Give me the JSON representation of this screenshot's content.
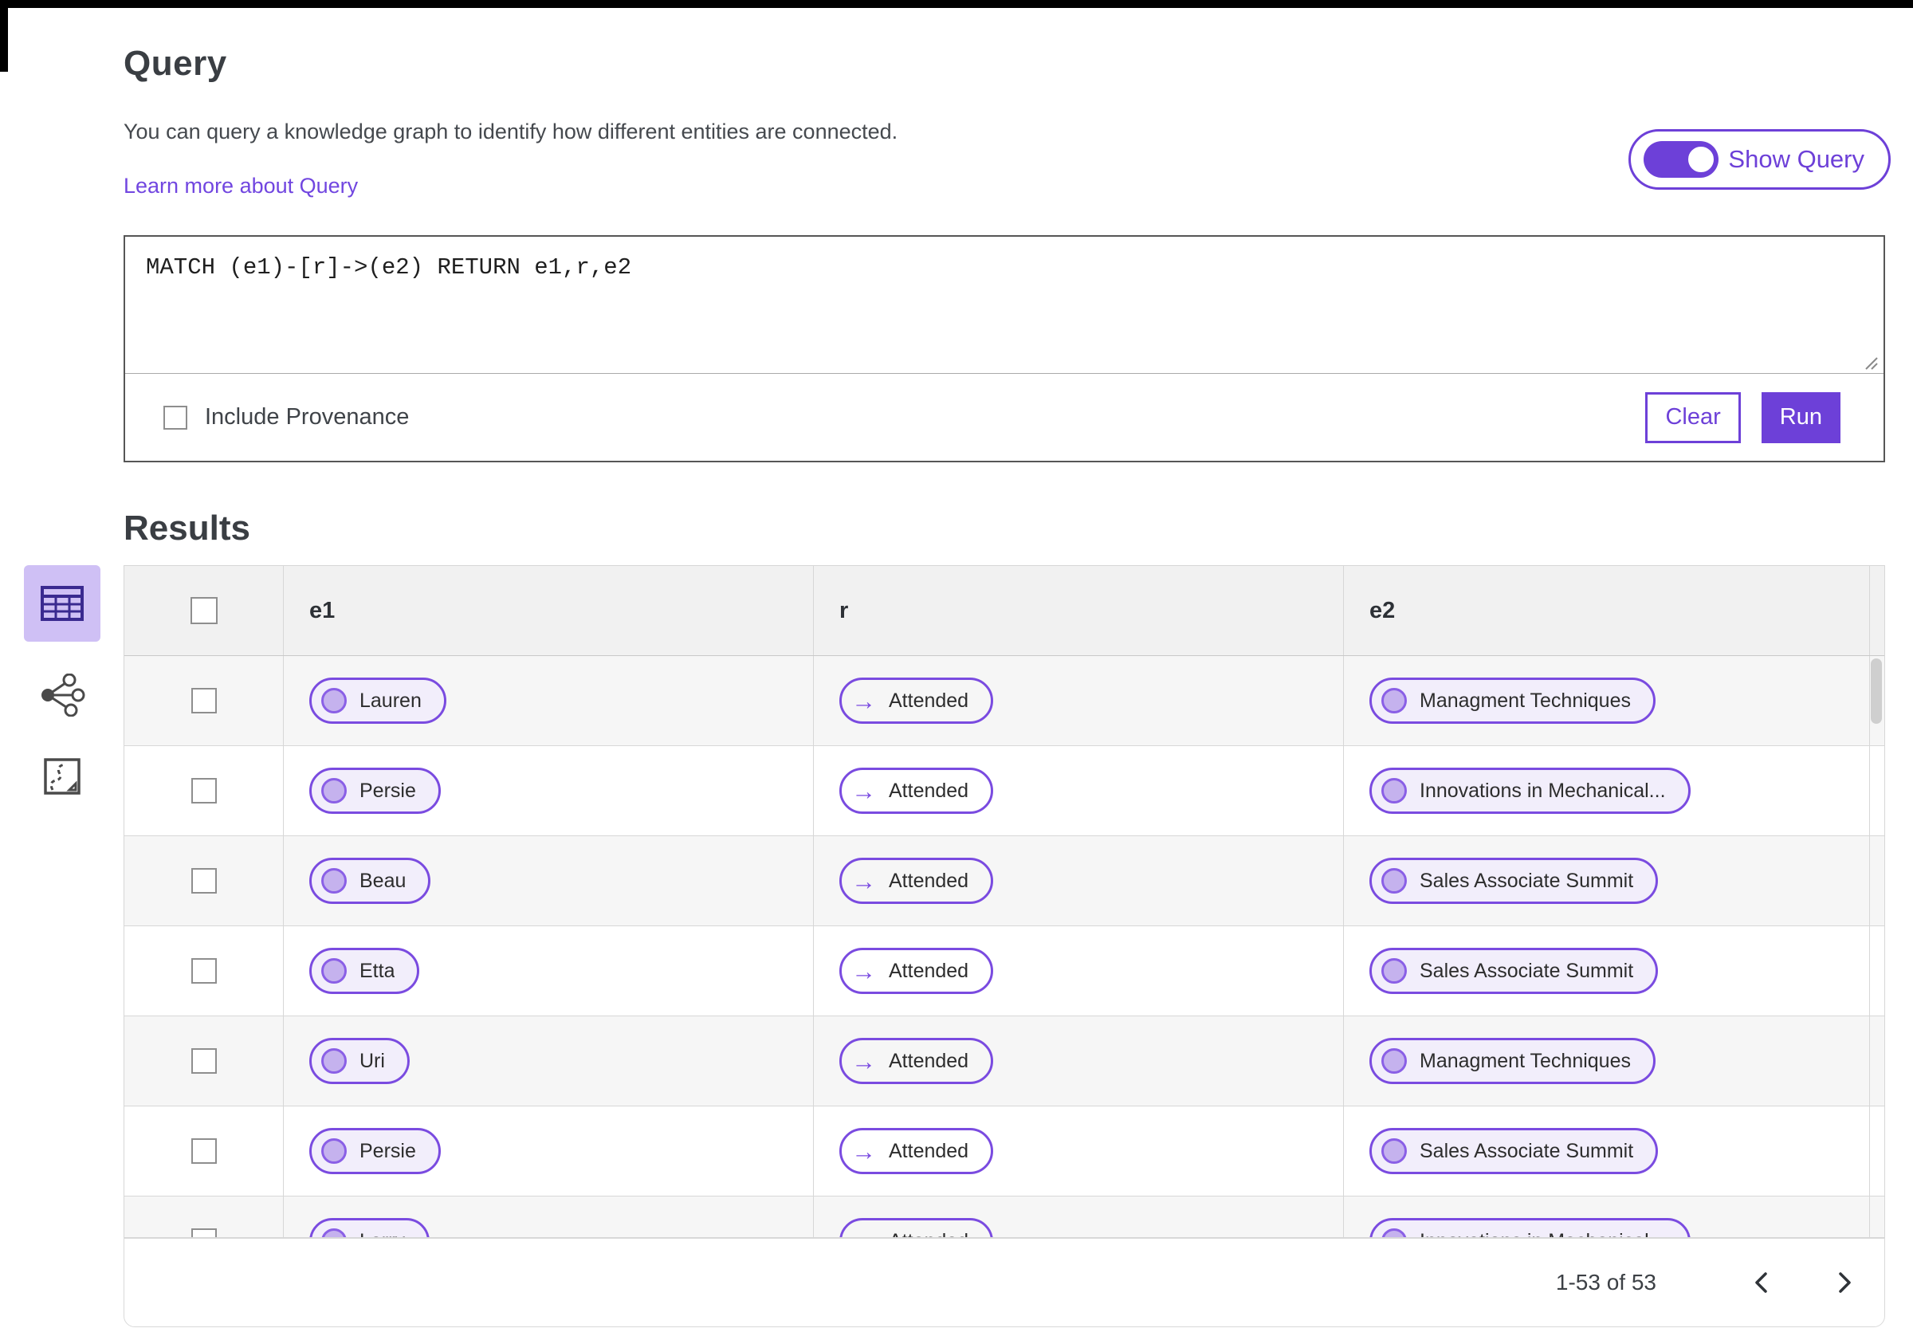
{
  "query": {
    "title": "Query",
    "description": "You can query a knowledge graph to identify how different entities are connected.",
    "learn_more_label": "Learn more about Query",
    "show_query_label": "Show Query",
    "show_query_state": "on",
    "query_text": "MATCH (e1)-[r]->(e2) RETURN e1,r,e2",
    "include_provenance_label": "Include Provenance",
    "include_provenance_checked": false,
    "clear_label": "Clear",
    "run_label": "Run"
  },
  "results": {
    "title": "Results",
    "views": [
      {
        "name": "table-view",
        "icon": "table-icon",
        "active": true
      },
      {
        "name": "graph-view",
        "icon": "graph-icon",
        "active": false
      },
      {
        "name": "map-view",
        "icon": "map-icon",
        "active": false
      }
    ],
    "table": {
      "columns": [
        "e1",
        "r",
        "e2"
      ],
      "relation_arrow_glyph": "→",
      "rows": [
        {
          "e1": "Lauren",
          "r": "Attended",
          "e2": "Managment Techniques"
        },
        {
          "e1": "Persie",
          "r": "Attended",
          "e2": "Innovations in Mechanical..."
        },
        {
          "e1": "Beau",
          "r": "Attended",
          "e2": "Sales Associate Summit"
        },
        {
          "e1": "Etta",
          "r": "Attended",
          "e2": "Sales Associate Summit"
        },
        {
          "e1": "Uri",
          "r": "Attended",
          "e2": "Managment Techniques"
        },
        {
          "e1": "Persie",
          "r": "Attended",
          "e2": "Sales Associate Summit"
        },
        {
          "e1": "Larry",
          "r": "Attended",
          "e2": "Innovations in Mechanical..."
        }
      ]
    },
    "pagination": {
      "range_label": "1-53 of 53"
    }
  },
  "colors": {
    "accent": "#6d40d8",
    "link": "#7146e0",
    "pill_border": "#7a4be0",
    "pill_fill": "#f2eefb",
    "node_circle_fill": "#c5b2ee",
    "node_circle_stroke": "#8a5fe6",
    "active_view_bg": "#cfc0f5",
    "header_bg": "#f1f1f1",
    "row_stripe": "#f6f6f6",
    "border_gray": "#d7d7d7"
  }
}
